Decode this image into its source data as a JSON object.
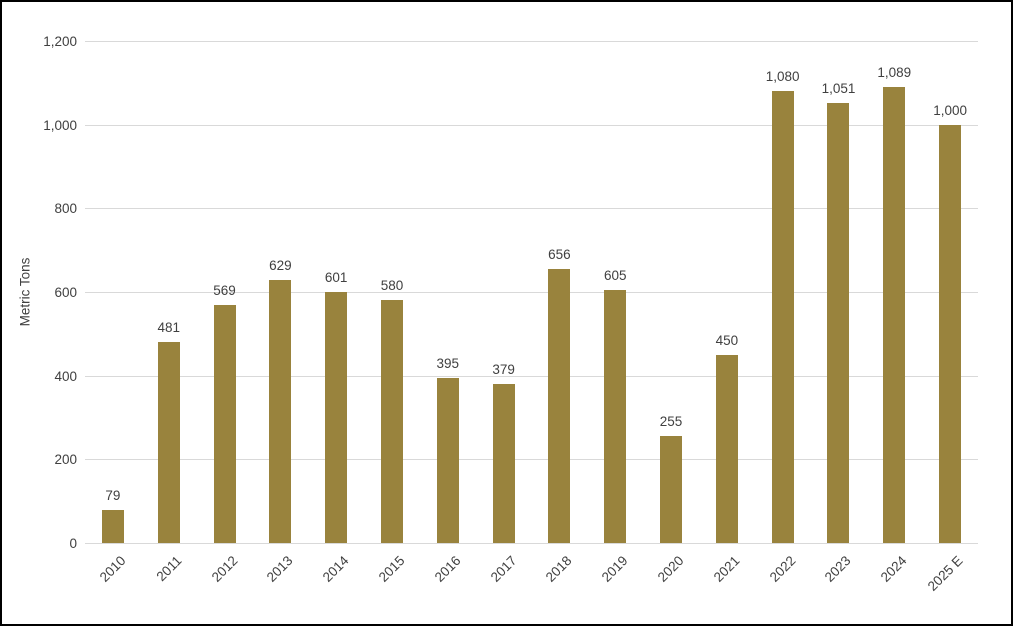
{
  "chart_data": {
    "type": "bar",
    "title": "",
    "categories": [
      "2010",
      "2011",
      "2012",
      "2013",
      "2014",
      "2015",
      "2016",
      "2017",
      "2018",
      "2019",
      "2020",
      "2021",
      "2022",
      "2023",
      "2024",
      "2025 E"
    ],
    "values": [
      79,
      481,
      569,
      629,
      601,
      580,
      395,
      379,
      656,
      605,
      255,
      450,
      1080,
      1051,
      1089,
      1000
    ],
    "value_labels": [
      "79",
      "481",
      "569",
      "629",
      "601",
      "580",
      "395",
      "379",
      "656",
      "605",
      "255",
      "450",
      "1,080",
      "1,051",
      "1,089",
      "1,000"
    ],
    "xlabel": "",
    "ylabel": "Metric Tons",
    "ylim": [
      0,
      1200
    ],
    "ytick_values": [
      0,
      200,
      400,
      600,
      800,
      1000,
      1200
    ],
    "ytick_labels": [
      "0",
      "200",
      "400",
      "600",
      "800",
      "1,000",
      "1,200"
    ],
    "grid": true,
    "legend_position": "none",
    "bar_color": "#99833D",
    "gridline_color": "#D9D9D9",
    "text_color": "#404040",
    "background_color": "#FFFFFF",
    "border_color": "#000000"
  }
}
